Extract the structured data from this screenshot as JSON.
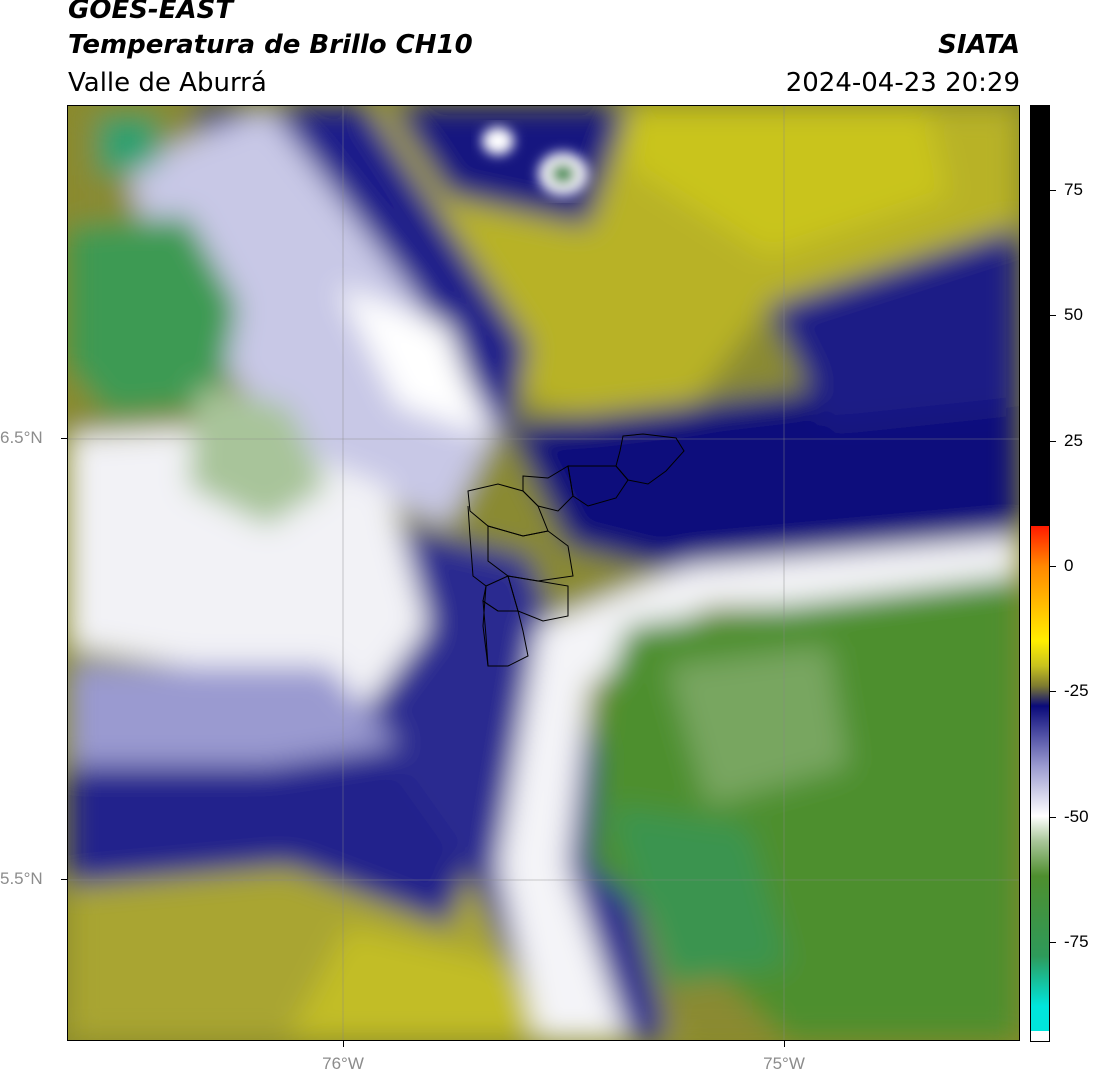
{
  "header": {
    "satellite": "GOES-EAST",
    "product": "Temperatura de Brillo CH10",
    "region": "Valle de Aburrá",
    "agency": "SIATA",
    "datetime": "2024-04-23 20:29"
  },
  "axes": {
    "lat_ticks": [
      {
        "value": 6.5,
        "label": "6.5°N"
      },
      {
        "value": 5.5,
        "label": "5.5°N"
      }
    ],
    "lon_ticks": [
      {
        "value": -76,
        "label": "76°W"
      },
      {
        "value": -75,
        "label": "75°W"
      }
    ],
    "lat_range": [
      5.13,
      7.25
    ],
    "lon_range": [
      -76.625,
      -74.465
    ]
  },
  "colorbar": {
    "range": [
      -95,
      92
    ],
    "ticks": [
      {
        "value": 75,
        "label": "75"
      },
      {
        "value": 50,
        "label": "50"
      },
      {
        "value": 25,
        "label": "25"
      },
      {
        "value": 0,
        "label": "0"
      },
      {
        "value": -25,
        "label": "-25"
      },
      {
        "value": -50,
        "label": "-50"
      },
      {
        "value": -75,
        "label": "-75"
      }
    ],
    "colors": {
      "cyan": "#00e5dc",
      "teal_green": "#2e9a5a",
      "green": "#4e8f2e",
      "light_green": "#a9c79a",
      "white": "#ffffff",
      "lavender": "#9a9ad0",
      "navy": "#0a0a7a",
      "olive": "#7d7a30",
      "yellow_olive": "#c8c21e",
      "yellow": "#ffee00",
      "orange": "#ff8800",
      "red": "#ff1a00",
      "black": "#000000"
    }
  }
}
